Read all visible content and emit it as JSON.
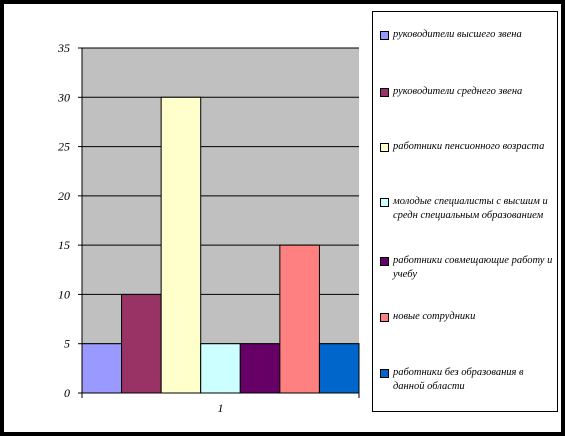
{
  "chart_data": {
    "type": "bar",
    "categories": [
      "1"
    ],
    "ylim": [
      0,
      35
    ],
    "yticks": [
      0,
      5,
      10,
      15,
      20,
      25,
      30,
      35
    ],
    "grid": true,
    "legend_position": "right",
    "plot_background": "#c0c0c0",
    "series": [
      {
        "name": "руководители высшего звена",
        "values": [
          5
        ],
        "color": "#9999ff"
      },
      {
        "name": "руководители среднего звена",
        "values": [
          10
        ],
        "color": "#993366"
      },
      {
        "name": "работники пенсионного возраста",
        "values": [
          30
        ],
        "color": "#ffffcc"
      },
      {
        "name": "молодые специалисты с высшим и средн специальным образованием",
        "values": [
          5
        ],
        "color": "#ccffff"
      },
      {
        "name": "работники совмещающие работу и учебу",
        "values": [
          5
        ],
        "color": "#660066"
      },
      {
        "name": "новые сотрудники",
        "values": [
          15
        ],
        "color": "#ff8080"
      },
      {
        "name": "работники без образования в данной области",
        "values": [
          5
        ],
        "color": "#0066cc"
      }
    ]
  }
}
